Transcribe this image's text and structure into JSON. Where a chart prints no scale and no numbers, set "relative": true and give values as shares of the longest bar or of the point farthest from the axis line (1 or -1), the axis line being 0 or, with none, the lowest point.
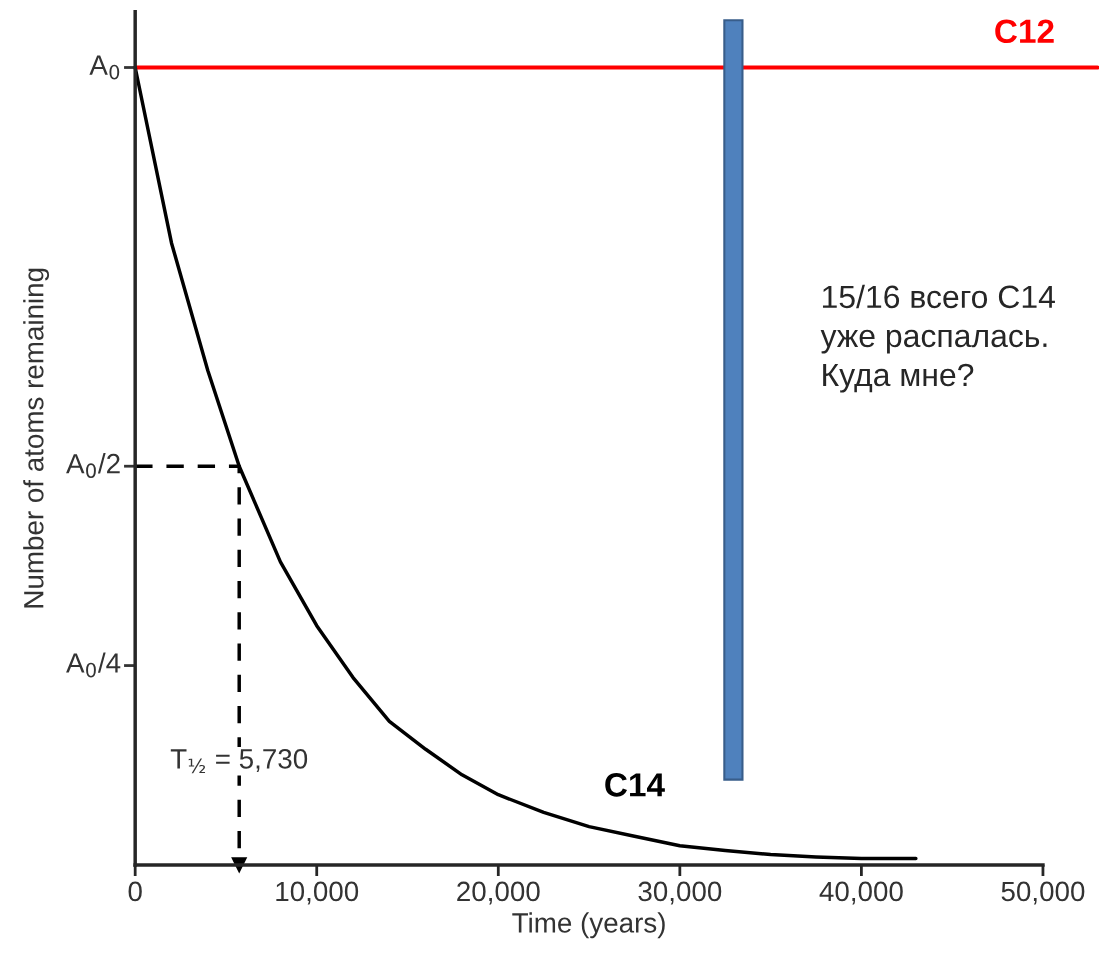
{
  "chart_data": {
    "type": "line",
    "relative": true,
    "xlabel": "Time (years)",
    "ylabel": "Number of atoms remaining",
    "xlim": [
      0,
      50000
    ],
    "xticks": [
      {
        "value": 0,
        "label": "0"
      },
      {
        "value": 10000,
        "label": "10,000"
      },
      {
        "value": 20000,
        "label": "20,000"
      },
      {
        "value": 30000,
        "label": "30,000"
      },
      {
        "value": 40000,
        "label": "40,000"
      },
      {
        "value": 50000,
        "label": "50,000"
      }
    ],
    "grid": false,
    "legend": false,
    "series": [
      {
        "name": "C14",
        "color": "#000000",
        "x": [
          0,
          2000,
          4000,
          5730,
          8000,
          10000,
          12000,
          14000,
          16000,
          18000,
          20000,
          22500,
          25000,
          27500,
          30000,
          32500,
          35000,
          37500,
          40000,
          43000
        ],
        "values": [
          1,
          0.78,
          0.62,
          0.5,
          0.38,
          0.3,
          0.235,
          0.18,
          0.145,
          0.113,
          0.088,
          0.066,
          0.048,
          0.036,
          0.024,
          0.018,
          0.013,
          0.01,
          0.008,
          0.008
        ]
      },
      {
        "type": "line",
        "line_style": "dashed",
        "color": "#000000",
        "x": [
          0,
          5730,
          5730
        ],
        "values": [
          0.5,
          0.5,
          0
        ]
      }
    ],
    "ref_lines": [
      {
        "axis": "y",
        "value": 1,
        "label": "C12",
        "color": "#ff0000"
      }
    ],
    "bands": [
      {
        "axis": "x",
        "from": 32450,
        "to": 33450,
        "color": "#4f81bd"
      }
    ],
    "annotations": [
      "A$_{0}$",
      "A$_{0}$/2",
      "A$_{0}$/4",
      {
        "text": "T$_{½}$ = 5,730",
        "x": 5730,
        "y": 0.13
      },
      "15/16 всего С14\nуже распалась.\nКуда мне?"
    ]
  }
}
